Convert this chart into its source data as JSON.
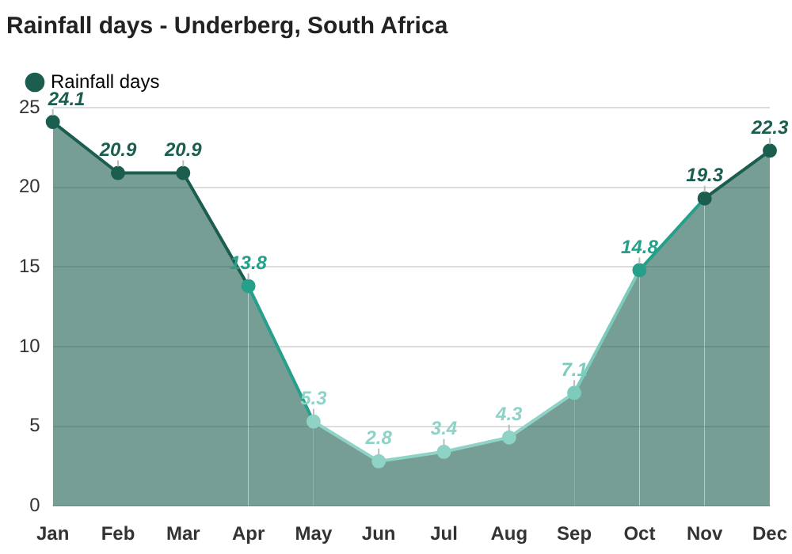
{
  "chart_data": {
    "type": "area",
    "title": "Rainfall days - Underberg, South Africa",
    "categories": [
      "Jan",
      "Feb",
      "Mar",
      "Apr",
      "May",
      "Jun",
      "Jul",
      "Aug",
      "Sep",
      "Oct",
      "Nov",
      "Dec"
    ],
    "series": [
      {
        "name": "Rainfall days",
        "color": "#1b5e4f",
        "colors": [
          "#1b5e4f",
          "#1b5e4f",
          "#1b5e4f",
          "#26a08a",
          "#8fd3c7",
          "#8fd3c7",
          "#8fd3c7",
          "#8fd3c7",
          "#7dcbbd",
          "#26a08a",
          "#1b5e4f",
          "#1b5e4f"
        ],
        "values": [
          24.1,
          20.9,
          20.9,
          13.8,
          5.3,
          2.8,
          3.4,
          4.3,
          7.1,
          14.8,
          19.3,
          22.3
        ]
      }
    ],
    "ylim": [
      0,
      25
    ],
    "yticks": [
      0,
      5,
      10,
      15,
      20,
      25
    ],
    "grid": "y",
    "legend": "top left",
    "marker": "circle",
    "data_labels": true
  }
}
